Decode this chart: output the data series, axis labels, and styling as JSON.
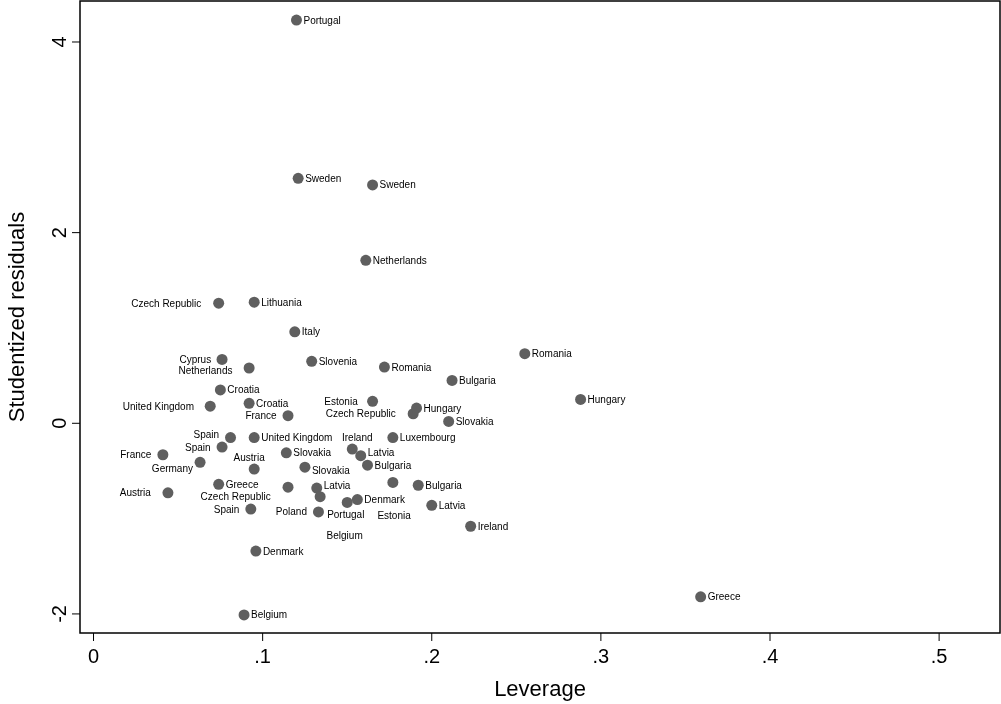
{
  "chart_data": {
    "type": "scatter",
    "xlabel": "Leverage",
    "ylabel": "Studentized residuals",
    "xlim": [
      -0.008,
      0.536
    ],
    "ylim": [
      -2.2,
      4.43
    ],
    "xticks": [
      0,
      {
        "value": 0.1,
        "label": ".1"
      },
      {
        "value": 0.2,
        "label": ".2"
      },
      {
        "value": 0.3,
        "label": ".3"
      },
      {
        "value": 0.4,
        "label": ".4"
      },
      {
        "value": 0.5,
        "label": ".5"
      }
    ],
    "yticks": [
      -2,
      0,
      2,
      4
    ],
    "grid": false,
    "marker": "circle",
    "series": [
      {
        "color": "#5f5f5f",
        "x": [
          0.12,
          0.121,
          0.165,
          0.161,
          0.074,
          0.095,
          0.119,
          0.076,
          0.129,
          0.092,
          0.172,
          0.255,
          0.212,
          0.288,
          0.075,
          0.069,
          0.092,
          0.115,
          0.189,
          0.165,
          0.191,
          0.21,
          0.081,
          0.095,
          0.076,
          0.041,
          0.063,
          0.114,
          0.095,
          0.125,
          0.153,
          0.158,
          0.177,
          0.162,
          0.044,
          0.074,
          0.115,
          0.132,
          0.134,
          0.177,
          0.192,
          0.2,
          0.133,
          0.093,
          0.223,
          0.096,
          0.359,
          0.089,
          0.156,
          0.15
        ],
        "values": [
          4.23,
          2.57,
          2.5,
          1.71,
          1.26,
          1.27,
          0.96,
          0.67,
          0.65,
          0.58,
          0.59,
          0.73,
          0.45,
          0.25,
          0.35,
          0.18,
          0.21,
          0.08,
          0.1,
          0.23,
          0.16,
          0.02,
          -0.15,
          -0.15,
          -0.25,
          -0.33,
          -0.41,
          -0.31,
          -0.48,
          -0.46,
          -0.27,
          -0.34,
          -0.15,
          -0.44,
          -0.73,
          -0.64,
          -0.67,
          -0.68,
          -0.77,
          -0.62,
          -0.65,
          -0.86,
          -0.93,
          -0.9,
          -1.08,
          -1.34,
          -1.82,
          -2.01,
          -0.8,
          -0.83
        ],
        "value_labels": [
          "Portugal",
          "Sweden",
          "Sweden",
          "Netherlands",
          "Czech Republic",
          "Lithuania",
          "Italy",
          "Cyprus",
          "Slovenia",
          "Netherlands",
          "Romania",
          "Romania",
          "Bulgaria",
          "Hungary",
          "Croatia",
          "United Kingdom",
          "Croatia",
          "France",
          "Czech Republic",
          "Estonia",
          "Hungary",
          "Slovakia",
          "Spain",
          "United Kingdom",
          "Spain",
          "France",
          "Germany",
          "Slovakia",
          "Austria",
          "Slovakia",
          "Ireland",
          "Latvia",
          "Luxembourg",
          "Bulgaria",
          "Austria",
          "Greece",
          "Czech Republic",
          "Latvia",
          "Portugal",
          "Estonia",
          "Bulgaria",
          "Latvia",
          "Poland",
          "Spain",
          "Ireland",
          "Denmark",
          "Greece",
          "Belgium",
          "Denmark",
          "Belgium"
        ]
      }
    ]
  }
}
